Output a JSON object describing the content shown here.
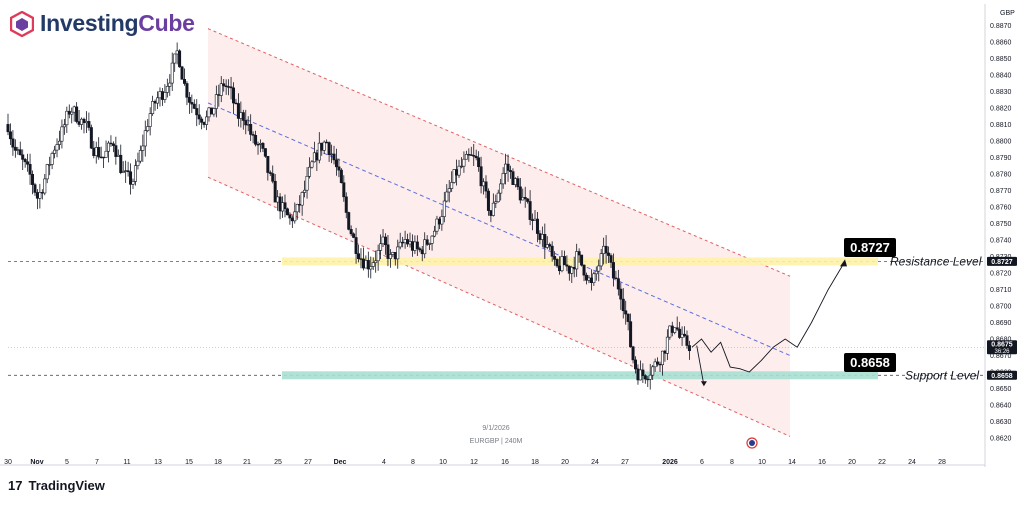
{
  "brand": {
    "name_part1": "Investing",
    "name_part2": "Cube"
  },
  "footer": {
    "logo_glyph": "17",
    "name": "TradingView"
  },
  "colors": {
    "candle": "#131722",
    "channel_fill": "#fde8e8",
    "channel_border": "#e06060",
    "midline": "#5b6ee1",
    "resistance_band": "#fff2a8",
    "support_band": "#a9dfd2",
    "badge": "#000000",
    "axis_text": "#131722"
  },
  "chart_data": {
    "type": "candlestick",
    "symbol": "EURGBP",
    "interval": "240M",
    "date_label": "9/1/2026",
    "currency": "GBP",
    "ylim": [
      0.8617,
      0.8872
    ],
    "yticks": [
      "0.8870",
      "0.8860",
      "0.8850",
      "0.8840",
      "0.8830",
      "0.8820",
      "0.8810",
      "0.8800",
      "0.8790",
      "0.8780",
      "0.8770",
      "0.8760",
      "0.8750",
      "0.8740",
      "0.8730",
      "0.8720",
      "0.8710",
      "0.8700",
      "0.8690",
      "0.8680",
      "0.8670",
      "0.8660",
      "0.8650",
      "0.8640",
      "0.8630",
      "0.8620"
    ],
    "xticks": [
      "30",
      "Nov",
      "5",
      "7",
      "11",
      "13",
      "15",
      "18",
      "21",
      "25",
      "27",
      "Dec",
      "4",
      "8",
      "10",
      "12",
      "16",
      "18",
      "20",
      "24",
      "27",
      "2026",
      "6",
      "8",
      "10",
      "14",
      "16",
      "20",
      "22",
      "24",
      "28"
    ],
    "price_path": [
      [
        0,
        0.881
      ],
      [
        5,
        0.8795
      ],
      [
        10,
        0.879
      ],
      [
        18,
        0.878
      ],
      [
        25,
        0.8765
      ],
      [
        30,
        0.8775
      ],
      [
        38,
        0.8795
      ],
      [
        45,
        0.8805
      ],
      [
        52,
        0.882
      ],
      [
        58,
        0.8815
      ],
      [
        66,
        0.8808
      ],
      [
        72,
        0.8795
      ],
      [
        80,
        0.879
      ],
      [
        88,
        0.88
      ],
      [
        96,
        0.878
      ],
      [
        104,
        0.8775
      ],
      [
        110,
        0.879
      ],
      [
        118,
        0.8815
      ],
      [
        124,
        0.8825
      ],
      [
        130,
        0.883
      ],
      [
        136,
        0.884
      ],
      [
        142,
        0.8855
      ],
      [
        147,
        0.8835
      ],
      [
        152,
        0.8825
      ],
      [
        158,
        0.8818
      ],
      [
        165,
        0.8812
      ],
      [
        172,
        0.882
      ],
      [
        180,
        0.8835
      ],
      [
        186,
        0.883
      ],
      [
        192,
        0.8815
      ],
      [
        198,
        0.8815
      ],
      [
        205,
        0.88
      ],
      [
        212,
        0.8795
      ],
      [
        218,
        0.878
      ],
      [
        224,
        0.8765
      ],
      [
        230,
        0.8758
      ],
      [
        236,
        0.8752
      ],
      [
        242,
        0.8758
      ],
      [
        248,
        0.877
      ],
      [
        254,
        0.8785
      ],
      [
        260,
        0.8795
      ],
      [
        266,
        0.88
      ],
      [
        272,
        0.879
      ],
      [
        278,
        0.8775
      ],
      [
        284,
        0.8752
      ],
      [
        290,
        0.8738
      ],
      [
        296,
        0.8728
      ],
      [
        302,
        0.8725
      ],
      [
        308,
        0.873
      ],
      [
        314,
        0.8738
      ],
      [
        320,
        0.8728
      ],
      [
        326,
        0.8733
      ],
      [
        332,
        0.874
      ],
      [
        338,
        0.8736
      ],
      [
        344,
        0.8733
      ],
      [
        350,
        0.8738
      ],
      [
        356,
        0.8745
      ],
      [
        362,
        0.8755
      ],
      [
        368,
        0.8768
      ],
      [
        374,
        0.878
      ],
      [
        380,
        0.8785
      ],
      [
        386,
        0.879
      ],
      [
        392,
        0.8788
      ],
      [
        398,
        0.877
      ],
      [
        404,
        0.8755
      ],
      [
        410,
        0.877
      ],
      [
        416,
        0.8785
      ],
      [
        422,
        0.8778
      ],
      [
        428,
        0.8768
      ],
      [
        434,
        0.876
      ],
      [
        440,
        0.8752
      ],
      [
        446,
        0.8742
      ],
      [
        452,
        0.8735
      ],
      [
        458,
        0.8722
      ],
      [
        464,
        0.8726
      ],
      [
        470,
        0.8722
      ],
      [
        476,
        0.873
      ],
      [
        482,
        0.8722
      ],
      [
        488,
        0.8712
      ],
      [
        494,
        0.8725
      ],
      [
        500,
        0.8735
      ],
      [
        506,
        0.8718
      ],
      [
        512,
        0.871
      ],
      [
        518,
        0.869
      ],
      [
        522,
        0.867
      ],
      [
        526,
        0.866
      ],
      [
        530,
        0.8658
      ],
      [
        536,
        0.866
      ],
      [
        542,
        0.8665
      ],
      [
        548,
        0.8672
      ],
      [
        554,
        0.8685
      ],
      [
        558,
        0.869
      ],
      [
        562,
        0.868
      ],
      [
        566,
        0.8678
      ],
      [
        570,
        0.8676
      ]
    ],
    "channel": {
      "upper_start": [
        0,
        0.8868
      ],
      "upper_end": [
        405,
        0.8718
      ],
      "lower_start": [
        0,
        0.8778
      ],
      "lower_end": [
        405,
        0.8621
      ],
      "mid_start": [
        0,
        0.8823
      ],
      "mid_end": [
        405,
        0.867
      ]
    },
    "levels": [
      {
        "name": "Resistance Level",
        "value": 0.8727,
        "label": "0.8727",
        "kind": "resistance"
      },
      {
        "name": "Support Level",
        "value": 0.8658,
        "label": "0.8658",
        "kind": "support"
      }
    ],
    "current_price": {
      "value": 0.8675,
      "label": "0.8675",
      "countdown": "36:26"
    },
    "projection": [
      [
        572,
        0.8675
      ],
      [
        580,
        0.868
      ],
      [
        588,
        0.8672
      ],
      [
        596,
        0.8678
      ],
      [
        604,
        0.8663
      ],
      [
        612,
        0.8662
      ],
      [
        620,
        0.866
      ],
      [
        630,
        0.8667
      ],
      [
        640,
        0.8675
      ],
      [
        650,
        0.868
      ],
      [
        660,
        0.8675
      ],
      [
        672,
        0.869
      ],
      [
        686,
        0.871
      ],
      [
        700,
        0.8727
      ]
    ],
    "projection_down": [
      [
        576,
        0.8676
      ],
      [
        582,
        0.8652
      ]
    ]
  }
}
